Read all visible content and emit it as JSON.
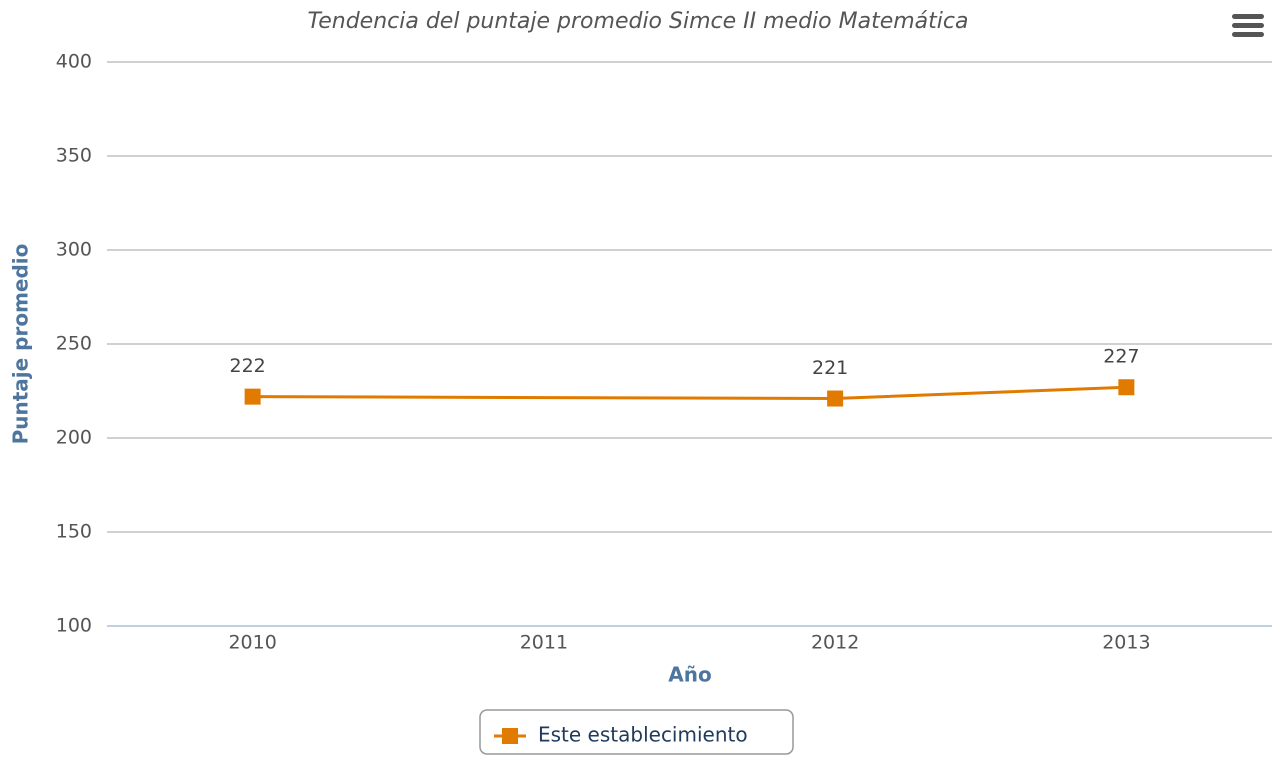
{
  "chart_data": {
    "type": "line",
    "title": "Tendencia del puntaje promedio Simce II medio Matemática",
    "x_label": "Año",
    "y_label": "Puntaje promedio",
    "x": [
      2010,
      2012,
      2013
    ],
    "series": [
      {
        "name": "Este establecimiento",
        "color": "#e07b00",
        "values": [
          222,
          221,
          227
        ]
      }
    ],
    "xlim": [
      2009.5,
      2013.5
    ],
    "xticks": [
      2010,
      2011,
      2012,
      2013
    ],
    "ylim": [
      100,
      400
    ],
    "yticks": [
      100,
      150,
      200,
      250,
      300,
      350,
      400
    ],
    "grid": true,
    "legend": "bottom"
  }
}
